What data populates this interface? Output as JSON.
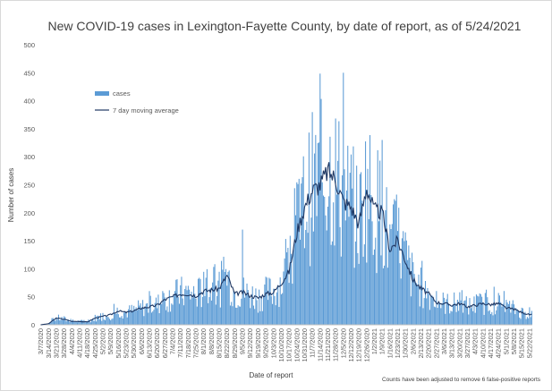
{
  "colors": {
    "bar": "#5b9bd5",
    "line": "#1f3864",
    "grid": "#e0e0e0",
    "axis": "#bfbfbf"
  },
  "chart_data": {
    "type": "bar",
    "title": "New COVID-19 cases in Lexington-Fayette County, by date of report, as of 5/24/2021",
    "xlabel": "Date of report",
    "ylabel": "Number of cases",
    "ylim": [
      0,
      500
    ],
    "yticks": [
      "0",
      "50",
      "100",
      "150",
      "200",
      "250",
      "300",
      "350",
      "400",
      "450",
      "500"
    ],
    "grid": false,
    "legend_position": "upper-left",
    "note": "Counts have been adjusted to remove 6 false-positive reports",
    "x_start": "2020-03-07",
    "x_end": "2021-05-24",
    "x_tick_labels": [
      "3/7/2020",
      "3/14/2020",
      "3/21/2020",
      "3/28/2020",
      "4/4/2020",
      "4/11/2020",
      "4/18/2020",
      "4/25/2020",
      "5/2/2020",
      "5/9/2020",
      "5/16/2020",
      "5/23/2020",
      "5/30/2020",
      "6/6/2020",
      "6/13/2020",
      "6/20/2020",
      "6/27/2020",
      "7/4/2020",
      "7/11/2020",
      "7/18/2020",
      "7/25/2020",
      "8/1/2020",
      "8/8/2020",
      "8/15/2020",
      "8/22/2020",
      "8/29/2020",
      "9/5/2020",
      "9/12/2020",
      "9/19/2020",
      "9/26/2020",
      "10/3/2020",
      "10/10/2020",
      "10/17/2020",
      "10/24/2020",
      "10/31/2020",
      "11/7/2020",
      "11/14/2020",
      "11/21/2020",
      "11/28/2020",
      "12/5/2020",
      "12/12/2020",
      "12/19/2020",
      "12/26/2020",
      "1/2/2021",
      "1/9/2021",
      "1/16/2021",
      "1/23/2021",
      "1/30/2021",
      "2/6/2021",
      "2/13/2021",
      "2/20/2021",
      "2/27/2021",
      "3/6/2021",
      "3/13/2021",
      "3/20/2021",
      "3/27/2021",
      "4/3/2021",
      "4/10/2021",
      "4/17/2021",
      "4/24/2021",
      "5/1/2021",
      "5/8/2021",
      "5/15/2021",
      "5/22/2021"
    ],
    "series": [
      {
        "name": "cases",
        "kind": "bar"
      },
      {
        "name": "7 day moving average",
        "kind": "line"
      }
    ],
    "moving_average_weekly": [
      0,
      2,
      12,
      10,
      6,
      6,
      5,
      12,
      15,
      18,
      25,
      22,
      25,
      30,
      32,
      35,
      45,
      50,
      55,
      55,
      52,
      60,
      62,
      65,
      88,
      55,
      58,
      52,
      48,
      55,
      58,
      75,
      95,
      165,
      210,
      240,
      250,
      275,
      260,
      220,
      210,
      180,
      245,
      205,
      200,
      135,
      150,
      115,
      80,
      65,
      55,
      40,
      38,
      35,
      38,
      32,
      35,
      38,
      36,
      38,
      30,
      28,
      22,
      18
    ],
    "notable_values": {
      "peak_cases": 450,
      "peak_date": "12/5/2020",
      "secondary_peak_cases": 330,
      "secondary_peak_date": "1/9/2021",
      "summer_peak_cases": 170,
      "summer_peak_date": "9/5/2020"
    }
  }
}
